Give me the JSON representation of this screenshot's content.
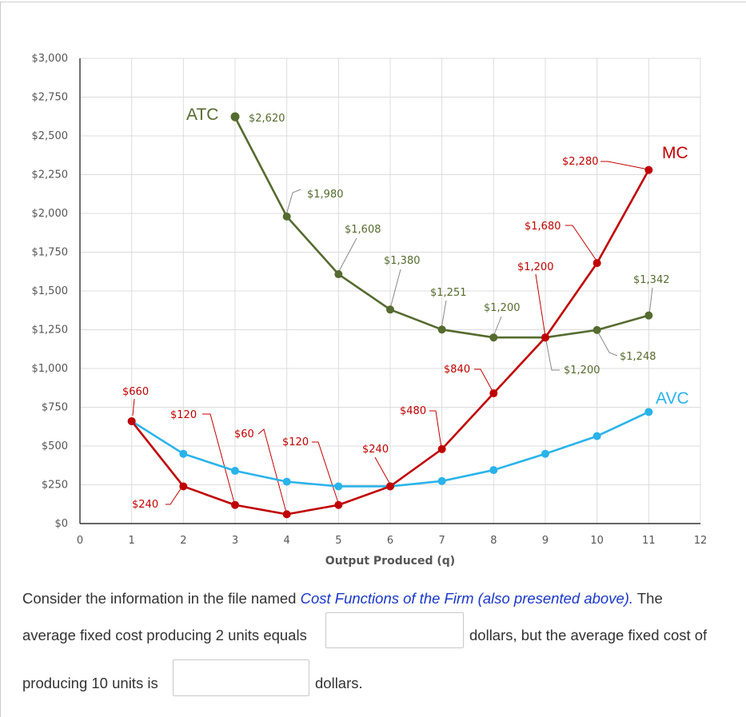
{
  "chart_data": {
    "type": "line",
    "xlabel": "Output Produced (q)",
    "ylabel": "",
    "xlim": [
      0,
      12
    ],
    "ylim": [
      0,
      3000
    ],
    "x_ticks": [
      "0",
      "1",
      "2",
      "3",
      "4",
      "5",
      "6",
      "7",
      "8",
      "9",
      "10",
      "11",
      "12"
    ],
    "y_ticks": [
      "$0",
      "$250",
      "$500",
      "$750",
      "$1,000",
      "$1,250",
      "$1,500",
      "$1,750",
      "$2,000",
      "$2,250",
      "$2,500",
      "$2,750",
      "$3,000"
    ],
    "grid": true,
    "series": [
      {
        "name": "ATC",
        "color": "#556b2f",
        "x": [
          3,
          4,
          5,
          6,
          7,
          8,
          9,
          10,
          11
        ],
        "values": [
          2620,
          1980,
          1608,
          1380,
          1251,
          1200,
          1200,
          1248,
          1342
        ]
      },
      {
        "name": "MC",
        "color": "#c00000",
        "x": [
          1,
          2,
          3,
          4,
          5,
          6,
          7,
          8,
          9,
          10,
          11
        ],
        "values": [
          660,
          240,
          120,
          60,
          120,
          240,
          480,
          840,
          1200,
          1680,
          2280
        ]
      },
      {
        "name": "AVC",
        "color": "#29b3ea",
        "x": [
          1,
          2,
          3,
          4,
          5,
          6,
          7,
          8,
          9,
          10,
          11
        ],
        "values": [
          660,
          450,
          340,
          270,
          240,
          240,
          274,
          345,
          450,
          564,
          720
        ]
      }
    ],
    "annotations": [
      {
        "text": "$2,620",
        "color": "#556b2f"
      },
      {
        "text": "$1,980",
        "color": "#556b2f"
      },
      {
        "text": "$1,608",
        "color": "#556b2f"
      },
      {
        "text": "$1,380",
        "color": "#556b2f"
      },
      {
        "text": "$1,251",
        "color": "#556b2f"
      },
      {
        "text": "$1,200",
        "color": "#556b2f"
      },
      {
        "text": "$1,342",
        "color": "#556b2f"
      },
      {
        "text": "$1,248",
        "color": "#556b2f"
      },
      {
        "text": "$660",
        "color": "#c00000"
      },
      {
        "text": "$240",
        "color": "#c00000"
      },
      {
        "text": "$120",
        "color": "#c00000"
      },
      {
        "text": "$60",
        "color": "#c00000"
      },
      {
        "text": "$120",
        "color": "#c00000"
      },
      {
        "text": "$240",
        "color": "#c00000"
      },
      {
        "text": "$480",
        "color": "#c00000"
      },
      {
        "text": "$840",
        "color": "#c00000"
      },
      {
        "text": "$1,200",
        "color": "#c00000"
      },
      {
        "text": "$1,680",
        "color": "#c00000"
      },
      {
        "text": "$2,280",
        "color": "#c00000"
      },
      {
        "text": "$1,200",
        "color": "#556b2f"
      }
    ]
  },
  "question": {
    "line1_prefix": "Consider the information in the file named ",
    "file_name": "Cost Functions of the Firm (also presented above).",
    "line1_suffix": " The",
    "line2_prefix": "average fixed cost producing 2 units equals",
    "line2_suffix": "dollars, but the average fixed cost of",
    "line3_prefix": "producing 10 units is",
    "line3_suffix": "dollars.",
    "answer1_value": "",
    "answer2_value": ""
  }
}
